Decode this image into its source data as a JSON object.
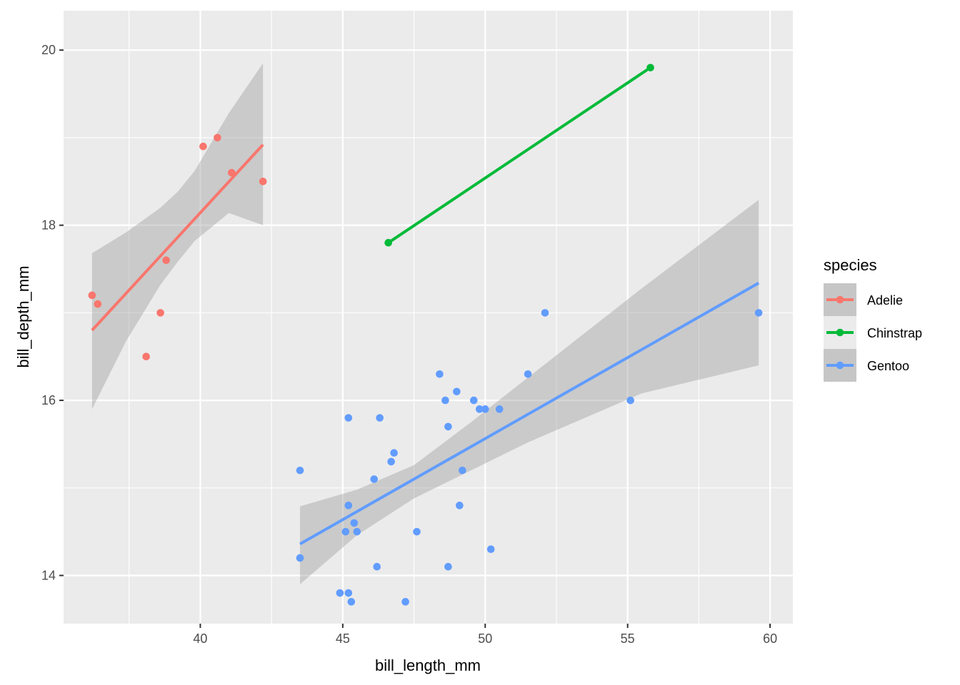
{
  "chart_data": {
    "type": "scatter",
    "title": "",
    "xlabel": "bill_length_mm",
    "ylabel": "bill_depth_mm",
    "xlim": [
      35.2,
      60.8
    ],
    "ylim": [
      13.45,
      20.45
    ],
    "x_ticks": [
      40,
      45,
      50,
      55,
      60
    ],
    "y_ticks": [
      14,
      16,
      18,
      20
    ],
    "x_tick_labels": [
      "40",
      "45",
      "50",
      "55",
      "60"
    ],
    "y_tick_labels": [
      "14",
      "16",
      "18",
      "20"
    ],
    "grid": true,
    "legend": {
      "title": "species",
      "position": "right"
    },
    "series": [
      {
        "name": "Adelie",
        "color": "#F8766D",
        "points": [
          {
            "x": 36.2,
            "y": 17.2
          },
          {
            "x": 36.4,
            "y": 17.1
          },
          {
            "x": 38.1,
            "y": 16.5
          },
          {
            "x": 38.6,
            "y": 17.0
          },
          {
            "x": 38.8,
            "y": 17.6
          },
          {
            "x": 40.1,
            "y": 18.9
          },
          {
            "x": 40.6,
            "y": 19.0
          },
          {
            "x": 41.1,
            "y": 18.6
          },
          {
            "x": 42.2,
            "y": 18.5
          }
        ],
        "fit": {
          "x1": 36.2,
          "y1": 16.8,
          "x2": 42.2,
          "y2": 18.92
        },
        "band": [
          {
            "x": 36.2,
            "lo": 15.9,
            "hi": 17.68
          },
          {
            "x": 37.4,
            "lo": 16.68,
            "hi": 17.92
          },
          {
            "x": 38.6,
            "lo": 17.32,
            "hi": 18.2
          },
          {
            "x": 39.2,
            "lo": 17.58,
            "hi": 18.38
          },
          {
            "x": 39.8,
            "lo": 17.82,
            "hi": 18.62
          },
          {
            "x": 41.0,
            "lo": 18.14,
            "hi": 19.28
          },
          {
            "x": 42.2,
            "lo": 18.0,
            "hi": 19.85
          }
        ]
      },
      {
        "name": "Chinstrap",
        "color": "#00BA38",
        "points": [
          {
            "x": 46.6,
            "y": 17.8
          },
          {
            "x": 55.8,
            "y": 19.8
          }
        ],
        "fit": {
          "x1": 46.6,
          "y1": 17.8,
          "x2": 55.8,
          "y2": 19.8
        },
        "band": []
      },
      {
        "name": "Gentoo",
        "color": "#619CFF",
        "points": [
          {
            "x": 43.5,
            "y": 15.2
          },
          {
            "x": 43.5,
            "y": 14.2
          },
          {
            "x": 44.9,
            "y": 13.8
          },
          {
            "x": 45.1,
            "y": 14.5
          },
          {
            "x": 45.2,
            "y": 15.8
          },
          {
            "x": 45.2,
            "y": 14.8
          },
          {
            "x": 45.2,
            "y": 13.8
          },
          {
            "x": 45.3,
            "y": 13.7
          },
          {
            "x": 45.4,
            "y": 14.6
          },
          {
            "x": 45.5,
            "y": 14.5
          },
          {
            "x": 46.1,
            "y": 15.1
          },
          {
            "x": 46.2,
            "y": 14.1
          },
          {
            "x": 46.3,
            "y": 15.8
          },
          {
            "x": 46.7,
            "y": 15.3
          },
          {
            "x": 46.8,
            "y": 15.4
          },
          {
            "x": 47.2,
            "y": 13.7
          },
          {
            "x": 47.6,
            "y": 14.5
          },
          {
            "x": 48.4,
            "y": 16.3
          },
          {
            "x": 48.6,
            "y": 16.0
          },
          {
            "x": 48.7,
            "y": 15.7
          },
          {
            "x": 48.7,
            "y": 14.1
          },
          {
            "x": 49.0,
            "y": 16.1
          },
          {
            "x": 49.1,
            "y": 14.8
          },
          {
            "x": 49.2,
            "y": 15.2
          },
          {
            "x": 49.6,
            "y": 16.0
          },
          {
            "x": 49.8,
            "y": 15.9
          },
          {
            "x": 50.0,
            "y": 15.9
          },
          {
            "x": 50.2,
            "y": 14.3
          },
          {
            "x": 50.5,
            "y": 15.9
          },
          {
            "x": 51.5,
            "y": 16.3
          },
          {
            "x": 52.1,
            "y": 17.0
          },
          {
            "x": 55.1,
            "y": 16.0
          },
          {
            "x": 59.6,
            "y": 17.0
          }
        ],
        "fit": {
          "x1": 43.5,
          "y1": 14.36,
          "x2": 59.6,
          "y2": 17.34
        },
        "band": [
          {
            "x": 43.5,
            "lo": 13.9,
            "hi": 14.79
          },
          {
            "x": 45.5,
            "lo": 14.46,
            "hi": 14.98
          },
          {
            "x": 47.5,
            "lo": 14.88,
            "hi": 15.26
          },
          {
            "x": 49.5,
            "lo": 15.2,
            "hi": 15.75
          },
          {
            "x": 51.5,
            "lo": 15.52,
            "hi": 16.26
          },
          {
            "x": 55.5,
            "lo": 16.08,
            "hi": 17.28
          },
          {
            "x": 59.6,
            "lo": 16.4,
            "hi": 18.29
          }
        ]
      }
    ]
  }
}
